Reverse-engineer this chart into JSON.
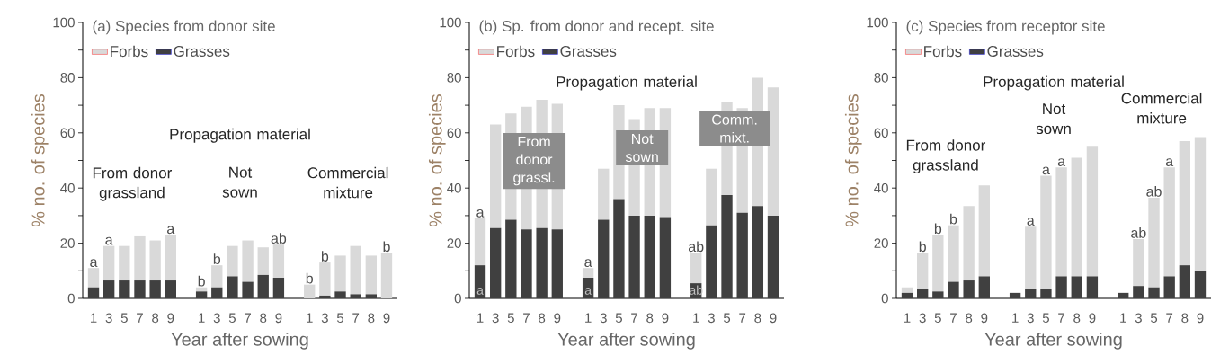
{
  "chart_data": [
    {
      "type": "bar",
      "stacked": true,
      "title": "(a) Species from donor site",
      "xlabel": "Year after sowing",
      "ylabel": "% no. of species",
      "categories": [
        "1",
        "3",
        "5",
        "7",
        "8",
        "9",
        null,
        "1",
        "3",
        "5",
        "7",
        "8",
        "9",
        null,
        "1",
        "3",
        "5",
        "7",
        "8",
        "9"
      ],
      "series": [
        {
          "name": "Grasses",
          "color": "#404040",
          "values": [
            4,
            6.5,
            6.5,
            6.5,
            6.5,
            6.5,
            null,
            2.5,
            4,
            8,
            6,
            8.5,
            7.5,
            null,
            0,
            1,
            2.5,
            1.5,
            1.5,
            0
          ]
        },
        {
          "name": "Forbs",
          "color": "#d9d9d9",
          "values": [
            7,
            12.5,
            12.5,
            16,
            14.5,
            16.5,
            null,
            1.5,
            8,
            11,
            15,
            10,
            12,
            null,
            5,
            12,
            13,
            17.5,
            14,
            16.5
          ],
          "value_labels": [
            "a",
            "a",
            null,
            null,
            null,
            "a",
            null,
            "b",
            "b",
            null,
            null,
            null,
            "ab",
            null,
            "b",
            "b",
            null,
            null,
            null,
            "b"
          ]
        }
      ],
      "ylim": [
        0,
        100
      ],
      "yticks": [
        0,
        {
          "value": 10,
          "label": null
        },
        20,
        {
          "value": 30,
          "label": null
        },
        40,
        {
          "value": 50,
          "label": null
        },
        60,
        {
          "value": 70,
          "label": null
        },
        80,
        {
          "value": 90,
          "label": null
        },
        100
      ],
      "legend": "top left",
      "annotations": [
        "Propagation material",
        "From donor grassland",
        "Not sown",
        "Commercial mixture"
      ]
    },
    {
      "type": "bar",
      "stacked": true,
      "title": "(b) Sp. from donor and recept. site",
      "xlabel": "Year after sowing",
      "ylabel": "% no. of species",
      "categories": [
        "1",
        "3",
        "5",
        "7",
        "8",
        "9",
        null,
        "1",
        "3",
        "5",
        "7",
        "8",
        "9",
        null,
        "1",
        "3",
        "5",
        "7",
        "8",
        "9"
      ],
      "series": [
        {
          "name": "Grasses",
          "color": "#404040",
          "values": [
            12,
            25.5,
            28.5,
            25,
            25.5,
            25,
            null,
            7.5,
            28.5,
            36,
            30,
            30,
            29.5,
            null,
            5.5,
            26.5,
            37.5,
            31,
            33.5,
            30
          ],
          "value_labels": [
            "a",
            null,
            null,
            null,
            null,
            null,
            null,
            "a",
            null,
            null,
            null,
            null,
            null,
            null,
            "ab",
            null,
            null,
            null,
            null,
            null
          ]
        },
        {
          "name": "Forbs",
          "color": "#d9d9d9",
          "values": [
            17,
            37.5,
            38.5,
            44.5,
            46.5,
            45.5,
            null,
            3.5,
            18.5,
            34,
            35,
            39,
            39.5,
            null,
            11,
            20.5,
            33.5,
            38,
            46.5,
            46.5
          ],
          "value_labels": [
            "a",
            null,
            null,
            null,
            null,
            null,
            null,
            "a",
            null,
            null,
            null,
            null,
            null,
            null,
            "ab",
            null,
            null,
            null,
            null,
            null
          ]
        }
      ],
      "ylim": [
        0,
        100
      ],
      "yticks": [
        0,
        {
          "value": 10,
          "label": null
        },
        20,
        {
          "value": 30,
          "label": null
        },
        40,
        {
          "value": 50,
          "label": null
        },
        60,
        {
          "value": 70,
          "label": null
        },
        80,
        {
          "value": 90,
          "label": null
        },
        100
      ],
      "legend": "top left",
      "annotations": [
        "Propagation material",
        "From donor grassl.",
        "Not sown",
        "Comm. mixt."
      ]
    },
    {
      "type": "bar",
      "stacked": true,
      "title": "(c) Species from receptor site",
      "xlabel": "Year after sowing",
      "ylabel": "% no. of species",
      "categories": [
        "1",
        "3",
        "5",
        "7",
        "8",
        "9",
        null,
        "1",
        "3",
        "5",
        "7",
        "8",
        "9",
        null,
        "1",
        "3",
        "5",
        "7",
        "8",
        "9"
      ],
      "series": [
        {
          "name": "Grasses",
          "color": "#404040",
          "values": [
            2,
            3.5,
            2.5,
            6,
            6.5,
            8,
            null,
            2,
            3.5,
            3.5,
            8,
            8,
            8,
            null,
            2,
            4.5,
            4,
            8,
            12,
            10
          ]
        },
        {
          "name": "Forbs",
          "color": "#d9d9d9",
          "values": [
            2,
            13,
            20.5,
            20.5,
            27,
            33,
            null,
            0,
            22.5,
            41,
            39.5,
            43,
            47,
            null,
            0,
            17,
            32.5,
            39.5,
            45,
            48.5
          ],
          "value_labels": [
            null,
            "b",
            "b",
            "b",
            null,
            null,
            null,
            null,
            "a",
            "a",
            "a",
            null,
            null,
            null,
            null,
            "ab",
            "ab",
            "a",
            null,
            null
          ]
        }
      ],
      "ylim": [
        0,
        100
      ],
      "yticks": [
        0,
        {
          "value": 10,
          "label": null
        },
        20,
        {
          "value": 30,
          "label": null
        },
        40,
        {
          "value": 50,
          "label": null
        },
        60,
        {
          "value": 70,
          "label": null
        },
        80,
        {
          "value": 90,
          "label": null
        },
        100
      ],
      "legend": "top left",
      "annotations": [
        "Propagation material",
        "From donor grassland",
        "Not sown",
        "Commercial mixture"
      ]
    }
  ]
}
